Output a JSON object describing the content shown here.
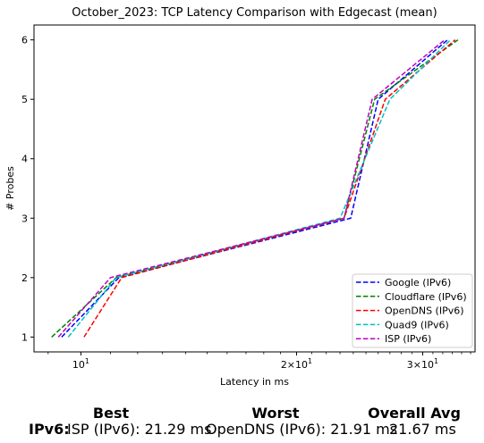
{
  "chart_data": {
    "type": "line",
    "title": "October_2023: TCP Latency Comparison with Edgecast (mean)",
    "xlabel": "Latency in ms",
    "ylabel": "# Probes",
    "x_scale": "log",
    "xlim": [
      8.6,
      35.5
    ],
    "ylim": [
      0.75,
      6.25
    ],
    "x_ticks": [
      {
        "value": 10,
        "label": "10^1"
      },
      {
        "value": 20,
        "label": "2×10^1"
      },
      {
        "value": 30,
        "label": "3×10^1"
      }
    ],
    "y_ticks": [
      1,
      2,
      3,
      4,
      5,
      6
    ],
    "legend_position": "lower right",
    "grid": false,
    "series": [
      {
        "name": "Google (IPv6)",
        "color": "#0000ff",
        "x": [
          9.4,
          11.3,
          23.8,
          26.0,
          32.5
        ],
        "y": [
          1,
          2,
          3,
          5,
          6
        ]
      },
      {
        "name": "Cloudflare (IPv6)",
        "color": "#008000",
        "x": [
          9.1,
          11.2,
          23.3,
          25.7,
          33.6
        ],
        "y": [
          1,
          2,
          3,
          5,
          6
        ]
      },
      {
        "name": "OpenDNS (IPv6)",
        "color": "#ff0000",
        "x": [
          10.1,
          11.4,
          23.3,
          26.6,
          33.3
        ],
        "y": [
          1,
          2,
          3,
          5,
          6
        ]
      },
      {
        "name": "Quad9 (IPv6)",
        "color": "#00bfbf",
        "x": [
          9.6,
          11.2,
          23.0,
          27.0,
          32.8
        ],
        "y": [
          1,
          2,
          3,
          5,
          6
        ]
      },
      {
        "name": "ISP (IPv6)",
        "color": "#bf00bf",
        "x": [
          9.3,
          11.0,
          23.3,
          25.5,
          32.2
        ],
        "y": [
          1,
          2,
          3,
          5,
          6
        ]
      }
    ]
  },
  "summary": {
    "best_header": "Best",
    "worst_header": "Worst",
    "avg_header": "Overall Avg",
    "row_label": "IPv6:",
    "best_value": "ISP (IPv6): 21.29 ms",
    "worst_value": "OpenDNS (IPv6): 21.91 ms",
    "avg_value": "21.67 ms"
  }
}
